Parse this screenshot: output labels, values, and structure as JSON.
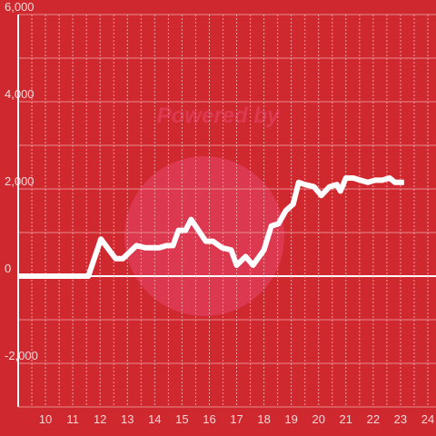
{
  "chart_data": {
    "type": "line",
    "watermark": "Powered by",
    "x": [
      9,
      11.57,
      12.03,
      12.57,
      12.83,
      13.33,
      13.67,
      14.17,
      14.43,
      14.67,
      14.87,
      15.13,
      15.33,
      15.6,
      15.87,
      16.13,
      16.47,
      16.8,
      17,
      17.33,
      17.6,
      18,
      18.27,
      18.53,
      18.8,
      19.07,
      19.27,
      19.5,
      19.83,
      20.1,
      20.4,
      20.67,
      20.8,
      21,
      21.27,
      21.53,
      21.8,
      22.07,
      22.33,
      22.6,
      22.8,
      23.13
    ],
    "series": [
      {
        "color": "#ffffff",
        "values": [
          0,
          0,
          850,
          400,
          400,
          700,
          650,
          650,
          700,
          700,
          1050,
          1050,
          1300,
          1050,
          800,
          800,
          650,
          600,
          250,
          450,
          250,
          600,
          1150,
          1200,
          1500,
          1650,
          2150,
          2100,
          2050,
          1850,
          2050,
          2100,
          1950,
          2250,
          2250,
          2200,
          2150,
          2200,
          2200,
          2250,
          2150,
          2150
        ]
      }
    ],
    "xlim": [
      9,
      24.3
    ],
    "xticks": [
      10,
      11,
      12,
      13,
      14,
      15,
      16,
      17,
      18,
      19,
      20,
      21,
      22,
      23,
      24
    ],
    "ylim": [
      -3000,
      6000
    ],
    "yticks": [
      {
        "value": -2000,
        "label": "-2,000"
      },
      0,
      {
        "value": 2000,
        "label": "2,000"
      },
      {
        "value": 4000,
        "label": "4,000"
      },
      {
        "value": 6000,
        "label": "6,000"
      }
    ],
    "grid": true
  }
}
